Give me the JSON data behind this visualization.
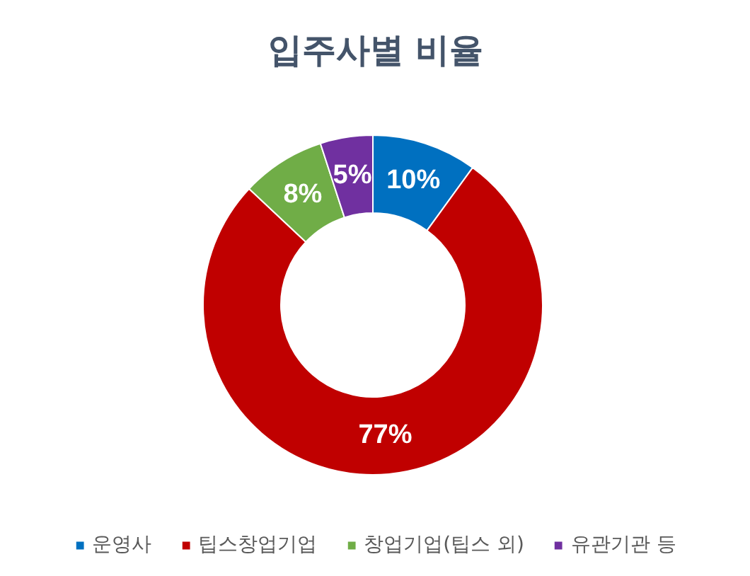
{
  "chart_data": {
    "type": "donut",
    "title": "입주사별 비율",
    "categories": [
      "운영사",
      "팁스창업기업",
      "창업기업(팁스 외)",
      "유관기관 등"
    ],
    "values": [
      10,
      77,
      8,
      5
    ],
    "colors": [
      "#0070c0",
      "#c00000",
      "#70ad47",
      "#7030a0"
    ],
    "value_labels": [
      "10%",
      "77%",
      "8%",
      "5%"
    ],
    "legend": "bottom"
  }
}
